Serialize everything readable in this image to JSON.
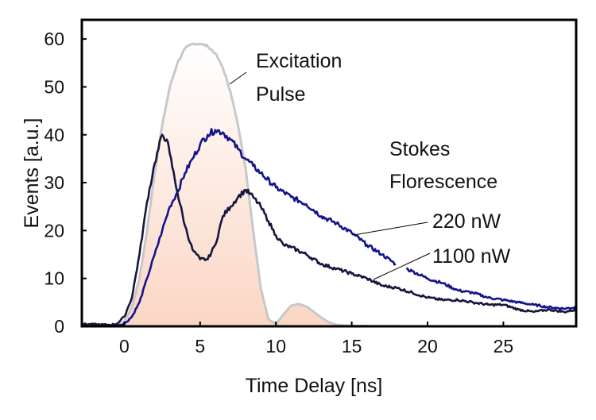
{
  "chart_data": {
    "type": "line",
    "title": "",
    "xlabel": "Time Delay [ns]",
    "ylabel": "Events [a.u.]",
    "xlim": [
      -2.8,
      29.8
    ],
    "ylim": [
      0,
      64
    ],
    "xticks": [
      0,
      5,
      10,
      15,
      20,
      25
    ],
    "yticks": [
      0,
      10,
      20,
      30,
      40,
      50,
      60
    ],
    "grid": false,
    "colors": {
      "pulse_stroke": "#c8c8c8",
      "pulse_fill_top": "#ffffff",
      "pulse_fill_bottom": "#fbd6c4",
      "s220": "#14148c",
      "s1100": "#16163e",
      "axis": "#000000"
    },
    "annotations": {
      "pulse_line1": "Excitation",
      "pulse_line2": "Pulse",
      "stokes_line1": "Stokes",
      "stokes_line2": "Florescence",
      "s220": "220 nW",
      "s1100": "1100 nW"
    },
    "series": [
      {
        "name": "Excitation Pulse",
        "filled": true,
        "x": [
          -3,
          -0.5,
          0,
          0.5,
          1,
          1.5,
          2,
          2.5,
          3,
          3.5,
          4,
          4.5,
          5,
          5.5,
          6,
          6.5,
          7,
          7.5,
          8,
          8.5,
          9,
          9.5,
          10,
          10.5,
          11,
          11.5,
          12,
          12.5,
          13,
          13.5,
          14,
          15,
          20,
          30
        ],
        "y": [
          0,
          0,
          1,
          4,
          10,
          20,
          32,
          42,
          50,
          55,
          58,
          59,
          59,
          58.5,
          57,
          54,
          49,
          42,
          33,
          20,
          8,
          1.5,
          0.5,
          2.5,
          4.3,
          4.7,
          4.2,
          3,
          1.8,
          0.8,
          0.3,
          0.1,
          0,
          0
        ]
      },
      {
        "name": "220 nW",
        "x": [
          -3,
          -0.5,
          0,
          0.5,
          1,
          1.5,
          2,
          2.5,
          3,
          3.5,
          4,
          4.5,
          5,
          5.5,
          6,
          6.5,
          7,
          7.5,
          8,
          8.5,
          9,
          10,
          11,
          12,
          13,
          14,
          15,
          16,
          17,
          17.9,
          null,
          18.6,
          19,
          20,
          21,
          22,
          23,
          24,
          25,
          26,
          27,
          28,
          29,
          29.8
        ],
        "y": [
          0.3,
          0.2,
          0.5,
          2,
          5,
          10,
          15,
          20,
          25,
          28,
          32,
          35,
          38,
          40,
          41,
          40.5,
          39,
          37,
          35,
          33.5,
          32,
          29,
          27,
          25.5,
          23,
          21.5,
          19.5,
          17,
          15,
          13,
          null,
          12,
          11.5,
          10,
          9,
          7.5,
          7,
          6,
          5.5,
          5,
          4.5,
          4,
          3.7,
          4
        ]
      },
      {
        "name": "1100 nW",
        "x": [
          -3,
          -1,
          -0.5,
          0,
          0.5,
          1,
          1.5,
          2,
          2.5,
          2.8,
          3,
          3.5,
          4,
          4.5,
          5,
          5.5,
          6,
          6.5,
          7,
          7.5,
          8,
          8.5,
          9,
          9.5,
          10,
          10.5,
          11,
          12,
          13,
          14,
          15,
          16,
          17,
          18,
          19,
          20,
          21,
          22,
          23,
          24,
          25,
          26,
          27,
          28,
          29,
          29.8
        ],
        "y": [
          0.5,
          0.3,
          0.5,
          2,
          6,
          15,
          26,
          34,
          40,
          39,
          36,
          28,
          21,
          16,
          14,
          14,
          17,
          23,
          25,
          27,
          28.5,
          27,
          25,
          22,
          19,
          17,
          16.5,
          15,
          13,
          12,
          11,
          10,
          8.5,
          8,
          7,
          6,
          5.5,
          5.5,
          5,
          4.5,
          4.5,
          3.5,
          3,
          3.5,
          3,
          3.5
        ]
      }
    ]
  }
}
